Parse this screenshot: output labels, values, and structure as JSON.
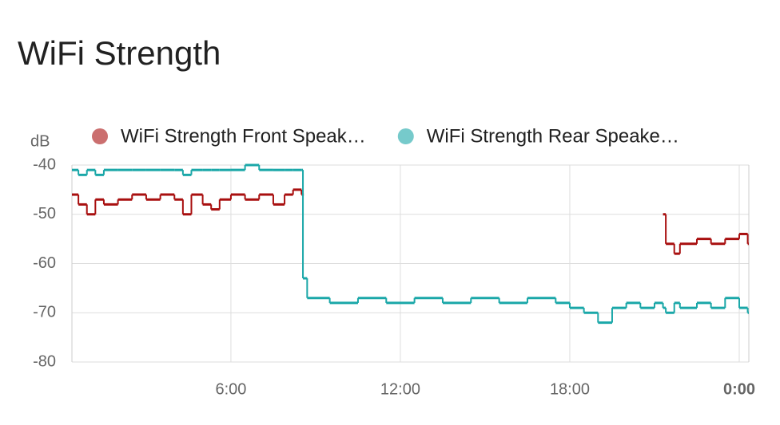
{
  "chart_data": {
    "type": "line",
    "step": true,
    "title": "WiFi Strength",
    "y_label": "dB",
    "x": [
      0.37,
      0.6,
      0.9,
      1.2,
      1.5,
      2,
      2.5,
      3,
      3.5,
      4,
      4.3,
      4.6,
      5,
      5.3,
      5.6,
      6,
      6.5,
      7,
      7.5,
      7.9,
      8.2,
      8.5,
      8.55,
      8.7,
      9.5,
      10.5,
      11.5,
      12.5,
      13.5,
      14.5,
      15.5,
      16.5,
      17.5,
      18,
      18.5,
      19,
      19.5,
      20,
      20.5,
      21,
      21.3,
      21.4,
      21.7,
      21.9,
      22.5,
      23,
      23.5,
      24,
      24.3
    ],
    "series": [
      {
        "name": "WiFi Strength Front Speak…",
        "color": "#a80f0f",
        "values": [
          -46,
          -48,
          -50,
          -47,
          -48,
          -47,
          -46,
          -47,
          -46,
          -47,
          -50,
          -46,
          -48,
          -49,
          -47,
          -46,
          -47,
          -46,
          -48,
          -46,
          -45,
          -46,
          null,
          null,
          null,
          null,
          null,
          null,
          null,
          null,
          null,
          null,
          null,
          null,
          null,
          null,
          null,
          null,
          null,
          null,
          -50,
          -56,
          -58,
          -56,
          -55,
          -56,
          -55,
          -54,
          -56
        ]
      },
      {
        "name": "WiFi Strength Rear Speake…",
        "color": "#1aa7a8",
        "values": [
          -41,
          -42,
          -41,
          -42,
          -41,
          -41,
          -41,
          -41,
          -41,
          -41,
          -42,
          -41,
          -41,
          -41,
          -41,
          -41,
          -40,
          -41,
          -41,
          -41,
          -41,
          -41,
          -63,
          -67,
          -68,
          -67,
          -68,
          -67,
          -68,
          -67,
          -68,
          -67,
          -68,
          -69,
          -70,
          -72,
          -69,
          -68,
          -69,
          -68,
          -69,
          -70,
          -68,
          -69,
          -68,
          -69,
          -67,
          -69,
          -70
        ]
      }
    ],
    "xlim": [
      0.37,
      24.34
    ],
    "ylim": [
      -80,
      -40
    ],
    "xticks": [
      {
        "value": 6,
        "label": "6:00"
      },
      {
        "value": 12,
        "label": "12:00"
      },
      {
        "value": 18,
        "label": "18:00"
      },
      {
        "value": 24,
        "label": "0:00"
      }
    ],
    "yticks": [
      -80,
      -70,
      -60,
      -50,
      -40
    ],
    "grid": true
  }
}
